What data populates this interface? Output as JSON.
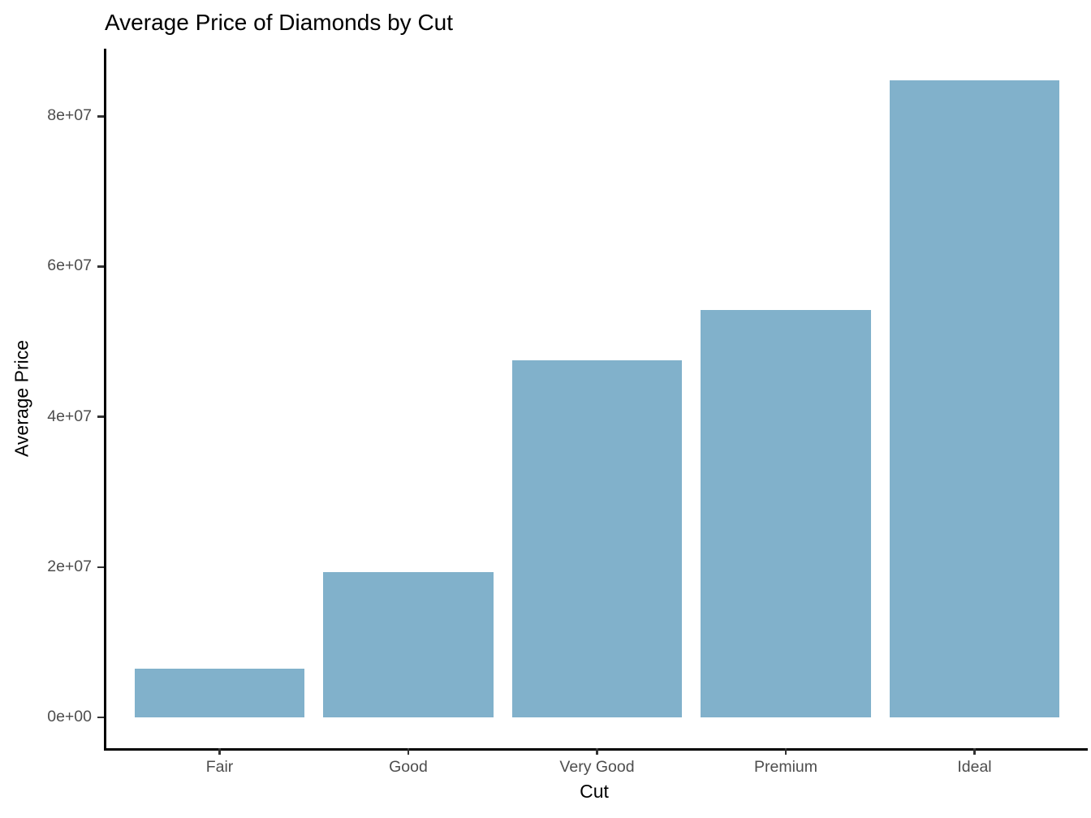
{
  "chart_data": {
    "type": "bar",
    "title": "Average Price of Diamonds by Cut",
    "xlabel": "Cut",
    "ylabel": "Average Price",
    "categories": [
      "Fair",
      "Good",
      "Very Good",
      "Premium",
      "Ideal"
    ],
    "values": [
      6500000,
      19350000,
      47500000,
      54200000,
      84800000
    ],
    "ylim": [
      0,
      89000000
    ],
    "yticks": {
      "values": [
        0,
        20000000,
        40000000,
        60000000,
        80000000
      ],
      "labels": [
        "0e+00",
        "2e+07",
        "4e+07",
        "6e+07",
        "8e+07"
      ]
    },
    "grid": false,
    "legend": "none",
    "bar_color": "#81B1CB",
    "axis_line_color": "#000000",
    "tick_mark_color": "#333333",
    "tick_label_color": "#4d4d4d",
    "title_color": "#000000",
    "background": "#ffffff"
  }
}
